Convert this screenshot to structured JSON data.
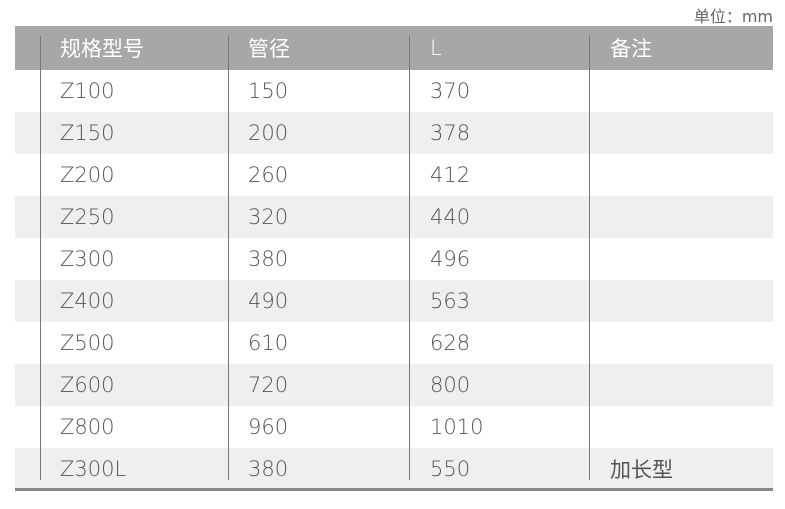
{
  "unit_label": "单位：mm",
  "headers": [
    "规格型号",
    "管径",
    "L",
    "备注"
  ],
  "rows": [
    [
      "Z100",
      "150",
      "370",
      ""
    ],
    [
      "Z150",
      "200",
      "378",
      ""
    ],
    [
      "Z200",
      "260",
      "412",
      ""
    ],
    [
      "Z250",
      "320",
      "440",
      ""
    ],
    [
      "Z300",
      "380",
      "496",
      ""
    ],
    [
      "Z400",
      "490",
      "563",
      ""
    ],
    [
      "Z500",
      "610",
      "628",
      ""
    ],
    [
      "Z600",
      "720",
      "800",
      ""
    ],
    [
      "Z800",
      "960",
      "1010",
      ""
    ],
    [
      "Z300L",
      "380",
      "550",
      "加长型"
    ]
  ],
  "colors": {
    "header_bg": "#a7a7a7",
    "alt_row_bg": "#efefef",
    "text": "#555555"
  }
}
